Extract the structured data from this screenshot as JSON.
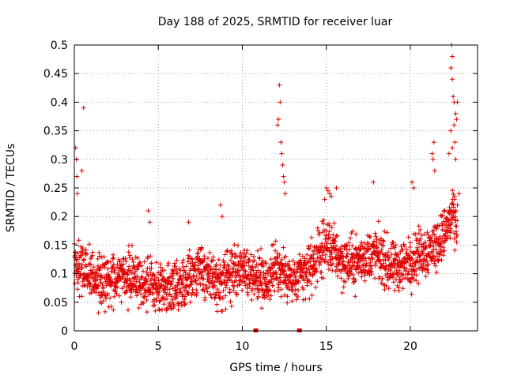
{
  "chart_data": {
    "type": "scatter",
    "title": "Day 188 of 2025, SRMTID for receiver luar",
    "xlabel": "GPS time / hours",
    "ylabel": "SRMTID / TECUs",
    "xlim": [
      0,
      24
    ],
    "ylim": [
      0,
      0.5
    ],
    "x_ticks": [
      0,
      5,
      10,
      15,
      20
    ],
    "y_ticks": [
      0,
      0.05,
      0.1,
      0.15,
      0.2,
      0.25,
      0.3,
      0.35,
      0.4,
      0.45,
      0.5
    ],
    "x_tick_labels": [
      "0",
      "5",
      "10",
      "15",
      "20"
    ],
    "y_tick_labels": [
      "0",
      "0.05",
      "0.1",
      "0.15",
      "0.2",
      "0.25",
      "0.3",
      "0.35",
      "0.4",
      "0.45",
      "0.5"
    ],
    "grid": true,
    "marker": "plus",
    "color": "#e00000",
    "profile_note": "typical trend (time in hours, SRMTID in TECU) used to draw the dense point cloud",
    "trend": [
      [
        0.0,
        0.12
      ],
      [
        0.5,
        0.11
      ],
      [
        1.0,
        0.09
      ],
      [
        1.5,
        0.09
      ],
      [
        2.0,
        0.085
      ],
      [
        2.5,
        0.1
      ],
      [
        3.0,
        0.105
      ],
      [
        3.5,
        0.095
      ],
      [
        4.0,
        0.085
      ],
      [
        4.5,
        0.08
      ],
      [
        5.0,
        0.075
      ],
      [
        5.5,
        0.07
      ],
      [
        6.0,
        0.075
      ],
      [
        6.5,
        0.085
      ],
      [
        7.0,
        0.1
      ],
      [
        7.5,
        0.11
      ],
      [
        8.0,
        0.095
      ],
      [
        8.5,
        0.08
      ],
      [
        9.0,
        0.09
      ],
      [
        9.5,
        0.1
      ],
      [
        10.0,
        0.11
      ],
      [
        10.5,
        0.1
      ],
      [
        11.0,
        0.095
      ],
      [
        11.5,
        0.085
      ],
      [
        12.0,
        0.11
      ],
      [
        12.5,
        0.1
      ],
      [
        13.0,
        0.085
      ],
      [
        13.5,
        0.095
      ],
      [
        14.0,
        0.11
      ],
      [
        14.5,
        0.13
      ],
      [
        15.0,
        0.15
      ],
      [
        15.5,
        0.14
      ],
      [
        16.0,
        0.12
      ],
      [
        16.5,
        0.12
      ],
      [
        17.0,
        0.125
      ],
      [
        17.5,
        0.13
      ],
      [
        18.0,
        0.135
      ],
      [
        18.5,
        0.12
      ],
      [
        19.0,
        0.11
      ],
      [
        19.5,
        0.115
      ],
      [
        20.0,
        0.12
      ],
      [
        20.5,
        0.135
      ],
      [
        21.0,
        0.14
      ],
      [
        21.5,
        0.15
      ],
      [
        22.0,
        0.17
      ],
      [
        22.5,
        0.2
      ],
      [
        22.8,
        0.18
      ]
    ],
    "spikes": [
      [
        0.08,
        0.32
      ],
      [
        0.12,
        0.3
      ],
      [
        0.15,
        0.27
      ],
      [
        0.18,
        0.24
      ],
      [
        0.45,
        0.28
      ],
      [
        0.55,
        0.39
      ],
      [
        4.4,
        0.21
      ],
      [
        4.5,
        0.19
      ],
      [
        6.8,
        0.19
      ],
      [
        8.7,
        0.22
      ],
      [
        8.8,
        0.2
      ],
      [
        12.2,
        0.43
      ],
      [
        12.25,
        0.4
      ],
      [
        12.15,
        0.37
      ],
      [
        12.1,
        0.36
      ],
      [
        12.3,
        0.33
      ],
      [
        12.35,
        0.31
      ],
      [
        12.4,
        0.29
      ],
      [
        12.45,
        0.27
      ],
      [
        12.5,
        0.26
      ],
      [
        12.55,
        0.24
      ],
      [
        15.0,
        0.25
      ],
      [
        15.1,
        0.245
      ],
      [
        15.2,
        0.24
      ],
      [
        15.3,
        0.235
      ],
      [
        14.9,
        0.23
      ],
      [
        15.6,
        0.25
      ],
      [
        17.8,
        0.26
      ],
      [
        20.1,
        0.26
      ],
      [
        20.2,
        0.25
      ],
      [
        21.4,
        0.33
      ],
      [
        21.3,
        0.31
      ],
      [
        21.35,
        0.3
      ],
      [
        21.45,
        0.28
      ],
      [
        22.45,
        0.5
      ],
      [
        22.5,
        0.48
      ],
      [
        22.42,
        0.46
      ],
      [
        22.5,
        0.44
      ],
      [
        22.55,
        0.41
      ],
      [
        22.6,
        0.4
      ],
      [
        22.7,
        0.38
      ],
      [
        22.8,
        0.4
      ],
      [
        22.75,
        0.37
      ],
      [
        22.6,
        0.36
      ],
      [
        22.4,
        0.35
      ],
      [
        22.65,
        0.33
      ],
      [
        22.5,
        0.32
      ],
      [
        22.3,
        0.31
      ],
      [
        22.7,
        0.3
      ],
      [
        22.9,
        0.24
      ],
      [
        22.8,
        0.22
      ]
    ],
    "zero_points": [
      10.8,
      13.4
    ]
  }
}
